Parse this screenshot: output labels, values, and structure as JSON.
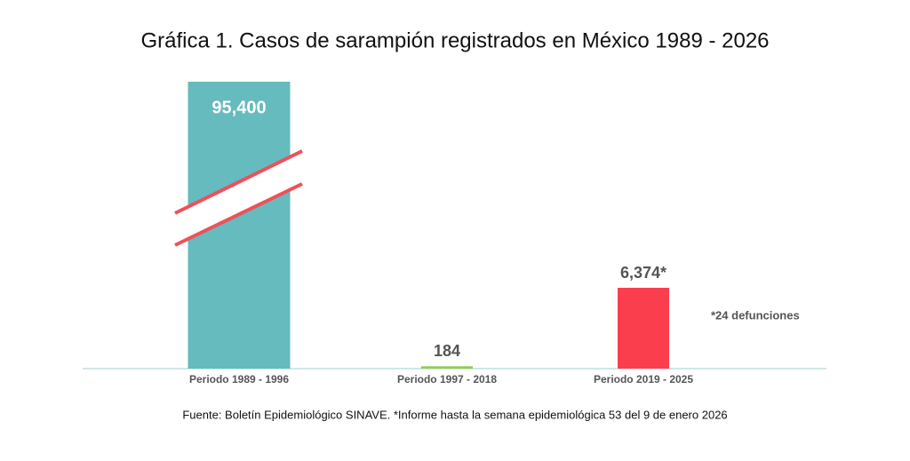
{
  "chart_data": {
    "type": "bar",
    "title": "Gráfica 1. Casos de sarampión registrados en México 1989 - 2026",
    "categories": [
      "Periodo 1989 - 1996",
      "Periodo 1997 - 2018",
      "Periodo 2019 - 2025"
    ],
    "values": [
      95400,
      184,
      6374
    ],
    "value_labels": [
      "95,400",
      "184",
      "6,374*"
    ],
    "colors": [
      "#66bbbe",
      "#8fce4a",
      "#fa3e4e"
    ],
    "annotation": "*24 defunciones",
    "source": "Fuente: Boletín Epidemiológico SINAVE. *Informe hasta la semana epidemiológica 53 del 9 de enero 2026"
  }
}
